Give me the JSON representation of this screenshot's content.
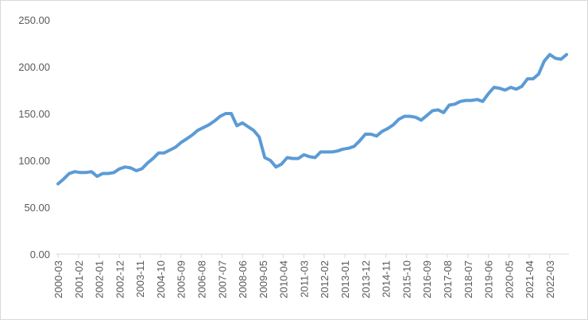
{
  "chart_data": {
    "type": "line",
    "title": "",
    "xlabel": "",
    "ylabel": "",
    "ylim": [
      0,
      250
    ],
    "y_ticks": [
      "0.00",
      "50.00",
      "100.00",
      "150.00",
      "200.00",
      "250.00"
    ],
    "grid": false,
    "legend": "none",
    "x_tick_labels": [
      "2000-03",
      "2001-02",
      "2002-01",
      "2002-12",
      "2003-11",
      "2004-10",
      "2005-09",
      "2006-08",
      "2007-07",
      "2008-06",
      "2009-05",
      "2010-04",
      "2011-03",
      "2012-02",
      "2013-01",
      "2013-12",
      "2014-11",
      "2015-10",
      "2016-09",
      "2017-08",
      "2018-07",
      "2019-06",
      "2020-05",
      "2021-04",
      "2022-03"
    ],
    "series": [
      {
        "color": "#5b9bd5",
        "points": [
          [
            "2000-03",
            75
          ],
          [
            "2000-06",
            80
          ],
          [
            "2000-09",
            86
          ],
          [
            "2000-12",
            88
          ],
          [
            "2001-03",
            87
          ],
          [
            "2001-06",
            87
          ],
          [
            "2001-09",
            88
          ],
          [
            "2001-12",
            83
          ],
          [
            "2002-03",
            86
          ],
          [
            "2002-06",
            86
          ],
          [
            "2002-09",
            87
          ],
          [
            "2002-12",
            91
          ],
          [
            "2003-03",
            93
          ],
          [
            "2003-06",
            92
          ],
          [
            "2003-09",
            89
          ],
          [
            "2003-12",
            91
          ],
          [
            "2004-03",
            97
          ],
          [
            "2004-06",
            102
          ],
          [
            "2004-09",
            108
          ],
          [
            "2004-12",
            108
          ],
          [
            "2005-03",
            111
          ],
          [
            "2005-06",
            114
          ],
          [
            "2005-09",
            119
          ],
          [
            "2005-12",
            123
          ],
          [
            "2006-03",
            127
          ],
          [
            "2006-06",
            132
          ],
          [
            "2006-09",
            135
          ],
          [
            "2006-12",
            138
          ],
          [
            "2007-03",
            142
          ],
          [
            "2007-06",
            147
          ],
          [
            "2007-09",
            150
          ],
          [
            "2007-12",
            150
          ],
          [
            "2008-03",
            137
          ],
          [
            "2008-06",
            140
          ],
          [
            "2008-09",
            136
          ],
          [
            "2008-12",
            132
          ],
          [
            "2009-03",
            125
          ],
          [
            "2009-06",
            103
          ],
          [
            "2009-09",
            100
          ],
          [
            "2009-12",
            93
          ],
          [
            "2010-03",
            96
          ],
          [
            "2010-06",
            103
          ],
          [
            "2010-09",
            102
          ],
          [
            "2010-12",
            102
          ],
          [
            "2011-03",
            106
          ],
          [
            "2011-06",
            104
          ],
          [
            "2011-09",
            103
          ],
          [
            "2011-12",
            109
          ],
          [
            "2012-03",
            109
          ],
          [
            "2012-06",
            109
          ],
          [
            "2012-09",
            110
          ],
          [
            "2012-12",
            112
          ],
          [
            "2013-03",
            113
          ],
          [
            "2013-06",
            115
          ],
          [
            "2013-09",
            121
          ],
          [
            "2013-12",
            128
          ],
          [
            "2014-03",
            128
          ],
          [
            "2014-06",
            126
          ],
          [
            "2014-09",
            131
          ],
          [
            "2014-12",
            134
          ],
          [
            "2015-03",
            138
          ],
          [
            "2015-06",
            144
          ],
          [
            "2015-09",
            147
          ],
          [
            "2015-12",
            147
          ],
          [
            "2016-03",
            146
          ],
          [
            "2016-06",
            143
          ],
          [
            "2016-09",
            148
          ],
          [
            "2016-12",
            153
          ],
          [
            "2017-03",
            154
          ],
          [
            "2017-06",
            151
          ],
          [
            "2017-09",
            159
          ],
          [
            "2017-12",
            160
          ],
          [
            "2018-03",
            163
          ],
          [
            "2018-06",
            164
          ],
          [
            "2018-09",
            164
          ],
          [
            "2018-12",
            165
          ],
          [
            "2019-03",
            163
          ],
          [
            "2019-06",
            171
          ],
          [
            "2019-09",
            178
          ],
          [
            "2019-12",
            177
          ],
          [
            "2020-03",
            175
          ],
          [
            "2020-06",
            178
          ],
          [
            "2020-09",
            176
          ],
          [
            "2020-12",
            179
          ],
          [
            "2021-03",
            187
          ],
          [
            "2021-06",
            187
          ],
          [
            "2021-09",
            192
          ],
          [
            "2021-12",
            206
          ],
          [
            "2022-03",
            213
          ],
          [
            "2022-06",
            209
          ],
          [
            "2022-09",
            208
          ],
          [
            "2022-12",
            213
          ]
        ]
      }
    ]
  }
}
